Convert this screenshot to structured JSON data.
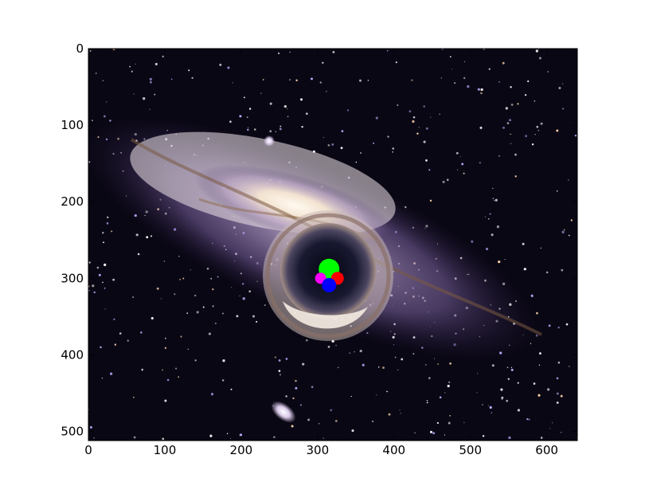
{
  "chart_data": {
    "type": "scatter",
    "title": "",
    "xlabel": "",
    "ylabel": "",
    "xlim": [
      0,
      640
    ],
    "ylim": [
      512,
      0
    ],
    "x_ticks": [
      0,
      100,
      200,
      300,
      400,
      500,
      600
    ],
    "y_ticks": [
      0,
      100,
      200,
      300,
      400,
      500
    ],
    "grid": false,
    "legend": "none",
    "background": "galaxy image with lensed black hole",
    "series": [
      {
        "color": "#00ff00",
        "points": [
          {
            "x": 315,
            "y": 288
          }
        ]
      },
      {
        "color": "#ff0000",
        "points": [
          {
            "x": 326,
            "y": 300
          }
        ]
      },
      {
        "color": "#ff00ff",
        "points": [
          {
            "x": 304,
            "y": 300
          }
        ]
      },
      {
        "color": "#0000ff",
        "points": [
          {
            "x": 315,
            "y": 309
          }
        ]
      }
    ],
    "marker_sizes": [
      13,
      8,
      7,
      9
    ]
  }
}
